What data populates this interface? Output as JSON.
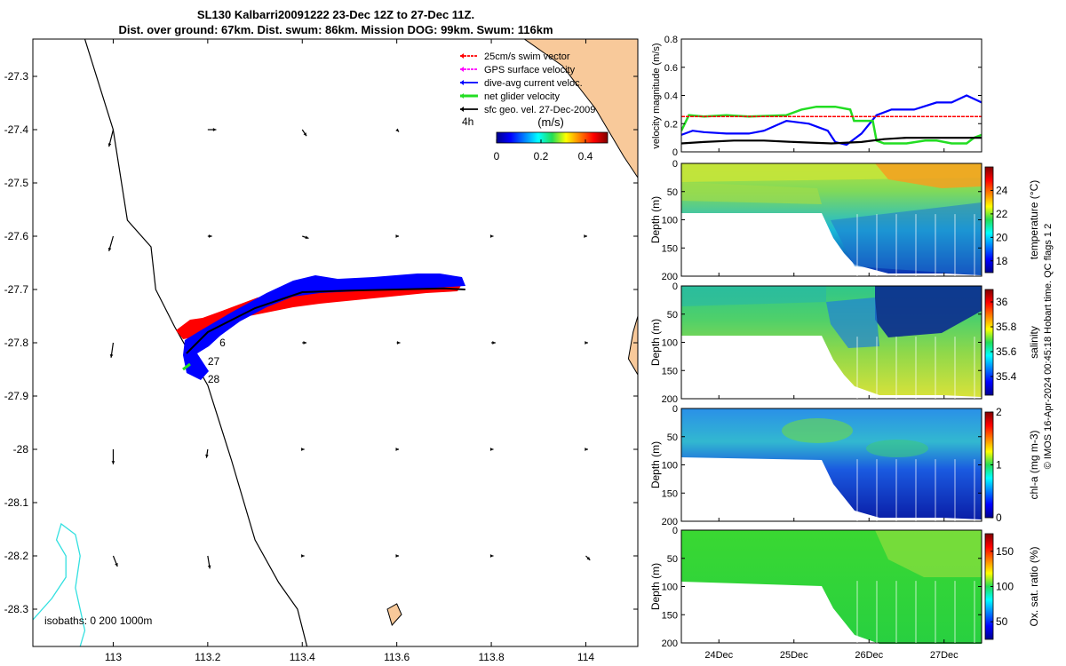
{
  "title": {
    "line1": "SL130 Kalbarri20091222 23-Dec 12Z to 27-Dec 11Z.",
    "line2": "Dist. over ground: 67km. Dist. swum: 86km. Mission DOG: 99km. Swum: 116km"
  },
  "colors": {
    "swim": "#ff0000",
    "gps": "#ff00ff",
    "dive": "#0000ff",
    "net": "#22dd22",
    "sfc": "#000000",
    "land": "#f8c99a",
    "isobath": "#33e0e0"
  },
  "footer_text": "© IMOS 16-Apr-2024 00:45:18 Hobart time. QC flags 1  2",
  "chart_data": [
    {
      "type": "scatter",
      "name": "map",
      "xlabel": "",
      "ylabel": "",
      "xlim": [
        112.83,
        114.11
      ],
      "ylim": [
        -28.37,
        -27.23
      ],
      "xticks": [
        113,
        113.2,
        113.4,
        113.6,
        113.8,
        114
      ],
      "xtick_labels": [
        "113",
        "113.2",
        "113.4",
        "113.6",
        "113.8",
        "114"
      ],
      "yticks": [
        -27.3,
        -27.4,
        -27.5,
        -27.6,
        -27.7,
        -27.8,
        -27.9,
        -28,
        -28.1,
        -28.2,
        -28.3
      ],
      "ytick_labels": [
        "-27.3",
        "-27.4",
        "-27.5",
        "-27.6",
        "-27.7",
        "-27.8",
        "-27.9",
        "-28",
        "-28.1",
        "-28.2",
        "-28.3"
      ],
      "legend": [
        {
          "label": "25cm/s swim vector",
          "color": "#ff0000"
        },
        {
          "label": "GPS surface velocity",
          "color": "#ff00ff"
        },
        {
          "label": "dive-avg current veloc.",
          "color": "#0000ff"
        },
        {
          "label": "net glider velocity",
          "color": "#22dd22"
        },
        {
          "label": "sfc geo. vel. 27-Dec-2009",
          "color": "#000000"
        }
      ],
      "legend_position": "top-right",
      "colorbar": {
        "title": "(m/s)",
        "prefix": "4h",
        "ticks": [
          0,
          0.2,
          0.4
        ],
        "tick_labels": [
          "0",
          "0.2",
          "0.4"
        ],
        "range": [
          0,
          0.5
        ]
      },
      "isobaths_label": "isobaths: 0   200  1000m",
      "day_labels": [
        {
          "text": "6",
          "lon": 113.225,
          "lat": -27.8
        },
        {
          "text": "27",
          "lon": 113.2,
          "lat": -27.835
        },
        {
          "text": "28",
          "lon": 113.2,
          "lat": -27.868
        }
      ],
      "track": [
        [
          113.155,
          -27.82
        ],
        [
          113.2,
          -27.78
        ],
        [
          113.3,
          -27.735
        ],
        [
          113.4,
          -27.705
        ],
        [
          113.5,
          -27.702
        ],
        [
          113.6,
          -27.7
        ],
        [
          113.7,
          -27.698
        ],
        [
          113.745,
          -27.7
        ]
      ],
      "coastline": [
        [
          112.94,
          -27.23
        ],
        [
          113.0,
          -27.4
        ],
        [
          113.03,
          -27.57
        ],
        [
          113.08,
          -27.62
        ],
        [
          113.09,
          -27.7
        ],
        [
          113.13,
          -27.77
        ],
        [
          113.2,
          -27.88
        ],
        [
          113.25,
          -28.02
        ],
        [
          113.3,
          -28.17
        ],
        [
          113.35,
          -28.25
        ],
        [
          113.39,
          -28.3
        ],
        [
          113.41,
          -28.37
        ]
      ],
      "land_east": [
        [
          113.87,
          -27.23
        ],
        [
          114.11,
          -27.23
        ],
        [
          114.11,
          -27.49
        ],
        [
          114.08,
          -27.45
        ],
        [
          114.02,
          -27.36
        ],
        [
          113.95,
          -27.28
        ]
      ],
      "land_east2": [
        [
          114.11,
          -27.75
        ],
        [
          114.11,
          -27.86
        ],
        [
          114.09,
          -27.83
        ],
        [
          114.1,
          -27.78
        ]
      ],
      "island": [
        [
          113.58,
          -28.3
        ],
        [
          113.6,
          -28.29
        ],
        [
          113.61,
          -28.31
        ],
        [
          113.59,
          -28.33
        ]
      ],
      "isobath_line": [
        [
          112.83,
          -28.32
        ],
        [
          112.87,
          -28.28
        ],
        [
          112.9,
          -28.24
        ],
        [
          112.9,
          -28.2
        ],
        [
          112.88,
          -28.17
        ],
        [
          112.89,
          -28.14
        ],
        [
          112.92,
          -28.16
        ],
        [
          112.93,
          -28.2
        ],
        [
          112.92,
          -28.26
        ],
        [
          112.93,
          -28.3
        ],
        [
          112.94,
          -28.34
        ],
        [
          112.93,
          -28.37
        ]
      ],
      "sfc_vectors": [
        {
          "lon": 113.0,
          "lat": -27.4,
          "u": -0.01,
          "v": -0.04
        },
        {
          "lon": 113.2,
          "lat": -27.4,
          "u": 0.02,
          "v": 0.0
        },
        {
          "lon": 113.4,
          "lat": -27.4,
          "u": 0.01,
          "v": -0.015
        },
        {
          "lon": 113.6,
          "lat": -27.4,
          "u": 0.005,
          "v": -0.005
        },
        {
          "lon": 113.0,
          "lat": -27.6,
          "u": -0.01,
          "v": -0.035
        },
        {
          "lon": 113.2,
          "lat": -27.6,
          "u": 0.01,
          "v": 0.0
        },
        {
          "lon": 113.4,
          "lat": -27.6,
          "u": 0.015,
          "v": -0.005
        },
        {
          "lon": 113.6,
          "lat": -27.6,
          "u": 0.005,
          "v": 0.0
        },
        {
          "lon": 113.8,
          "lat": -27.6,
          "u": 0.005,
          "v": 0.0
        },
        {
          "lon": 114.0,
          "lat": -27.6,
          "u": 0.003,
          "v": 0.0
        },
        {
          "lon": 113.0,
          "lat": -27.8,
          "u": -0.005,
          "v": -0.035
        },
        {
          "lon": 113.4,
          "lat": -27.8,
          "u": 0.01,
          "v": 0.0
        },
        {
          "lon": 113.6,
          "lat": -27.8,
          "u": 0.008,
          "v": 0.0
        },
        {
          "lon": 113.8,
          "lat": -27.8,
          "u": 0.01,
          "v": 0.0
        },
        {
          "lon": 114.0,
          "lat": -27.8,
          "u": 0.005,
          "v": 0.0
        },
        {
          "lon": 113.0,
          "lat": -28.0,
          "u": 0.0,
          "v": -0.035
        },
        {
          "lon": 113.2,
          "lat": -28.0,
          "u": -0.003,
          "v": -0.02
        },
        {
          "lon": 113.4,
          "lat": -28.0,
          "u": 0.005,
          "v": 0.0
        },
        {
          "lon": 113.6,
          "lat": -28.0,
          "u": 0.005,
          "v": 0.0
        },
        {
          "lon": 113.8,
          "lat": -28.0,
          "u": 0.005,
          "v": 0.0
        },
        {
          "lon": 114.0,
          "lat": -28.0,
          "u": 0.005,
          "v": 0.0
        },
        {
          "lon": 113.0,
          "lat": -28.2,
          "u": 0.01,
          "v": -0.025
        },
        {
          "lon": 113.2,
          "lat": -28.2,
          "u": 0.005,
          "v": -0.03
        },
        {
          "lon": 113.4,
          "lat": -28.2,
          "u": 0.005,
          "v": 0.0
        },
        {
          "lon": 113.6,
          "lat": -28.2,
          "u": 0.005,
          "v": 0.0
        },
        {
          "lon": 113.8,
          "lat": -28.2,
          "u": 0.005,
          "v": 0.0
        },
        {
          "lon": 114.0,
          "lat": -28.2,
          "u": 0.01,
          "v": -0.01
        }
      ]
    },
    {
      "type": "line",
      "name": "velocity",
      "ylabel": "velocity magnitude (m/s)",
      "xlim": [
        23.5,
        27.5
      ],
      "ylim": [
        0,
        0.8
      ],
      "yticks": [
        0,
        0.2,
        0.4,
        0.6,
        0.8
      ],
      "ytick_labels": [
        "0",
        "0.2",
        "0.4",
        "0.6",
        "0.8"
      ],
      "series": [
        {
          "name": "dive-avg current veloc.",
          "color": "#0000ff",
          "x": [
            23.5,
            23.65,
            23.8,
            24.1,
            24.4,
            24.6,
            24.9,
            25.2,
            25.45,
            25.55,
            25.7,
            25.9,
            26.1,
            26.3,
            26.6,
            26.9,
            27.1,
            27.3,
            27.5
          ],
          "y": [
            0.12,
            0.15,
            0.14,
            0.13,
            0.13,
            0.15,
            0.22,
            0.2,
            0.15,
            0.07,
            0.05,
            0.13,
            0.26,
            0.3,
            0.3,
            0.35,
            0.35,
            0.4,
            0.35
          ]
        },
        {
          "name": "net glider velocity",
          "color": "#22dd22",
          "x": [
            23.5,
            23.6,
            23.8,
            24.1,
            24.4,
            24.9,
            25.1,
            25.3,
            25.55,
            25.75,
            25.8,
            26.05,
            26.1,
            26.2,
            26.5,
            26.75,
            26.9,
            27.1,
            27.3,
            27.4,
            27.5
          ],
          "y": [
            0.15,
            0.26,
            0.25,
            0.26,
            0.25,
            0.26,
            0.3,
            0.32,
            0.32,
            0.3,
            0.22,
            0.22,
            0.08,
            0.06,
            0.06,
            0.08,
            0.08,
            0.06,
            0.06,
            0.1,
            0.12
          ]
        },
        {
          "name": "25cm/s swim vector",
          "color": "#ff0000",
          "x": [
            23.5,
            27.5
          ],
          "y": [
            0.25,
            0.25
          ]
        },
        {
          "name": "sfc geo. vel.",
          "color": "#000000",
          "x": [
            23.5,
            23.8,
            24.2,
            24.6,
            25.0,
            25.5,
            25.9,
            26.2,
            26.5,
            26.9,
            27.2,
            27.5
          ],
          "y": [
            0.06,
            0.07,
            0.08,
            0.08,
            0.07,
            0.06,
            0.07,
            0.09,
            0.1,
            0.1,
            0.1,
            0.1
          ]
        }
      ]
    },
    {
      "type": "heatmap",
      "name": "temperature",
      "xlim": [
        23.5,
        27.5
      ],
      "ylim": [
        0,
        200
      ],
      "ylabel": "Depth (m)",
      "yticks": [
        0,
        50,
        100,
        150,
        200
      ],
      "cbar_label": "temperature (°C)",
      "cbar_range": [
        17,
        26
      ],
      "cbar_ticks": [
        18,
        20,
        22,
        24
      ],
      "surface_value": 22.5,
      "deep_value": 17.5
    },
    {
      "type": "heatmap",
      "name": "salinity",
      "xlim": [
        23.5,
        27.5
      ],
      "ylim": [
        0,
        200
      ],
      "ylabel": "Depth (m)",
      "yticks": [
        0,
        50,
        100,
        150,
        200
      ],
      "cbar_label": "salinity",
      "cbar_range": [
        35.25,
        36.1
      ],
      "cbar_ticks": [
        35.4,
        35.6,
        35.8,
        36
      ],
      "surface_value": 35.55,
      "deep_value": 35.9
    },
    {
      "type": "heatmap",
      "name": "chl-a",
      "xlim": [
        23.5,
        27.5
      ],
      "ylim": [
        0,
        200
      ],
      "ylabel": "Depth (m)",
      "yticks": [
        0,
        50,
        100,
        150,
        200
      ],
      "cbar_label": "chl-a (mg m-3)",
      "cbar_range": [
        0,
        2
      ],
      "cbar_ticks": [
        0,
        1,
        2
      ],
      "surface_value": 0.5,
      "deep_value": 0.1
    },
    {
      "type": "heatmap",
      "name": "oxygen",
      "xlim": [
        23.5,
        27.5
      ],
      "ylim": [
        0,
        200
      ],
      "ylabel": "Depth (m)",
      "yticks": [
        0,
        50,
        100,
        150,
        200
      ],
      "xticks": [
        24,
        25,
        26,
        27
      ],
      "xtick_labels": [
        "24Dec",
        "25Dec",
        "26Dec",
        "27Dec"
      ],
      "cbar_label": "Ox. sat. ratio (%)",
      "cbar_range": [
        25,
        175
      ],
      "cbar_ticks": [
        50,
        100,
        150
      ],
      "surface_value": 110,
      "deep_value": 100
    }
  ]
}
